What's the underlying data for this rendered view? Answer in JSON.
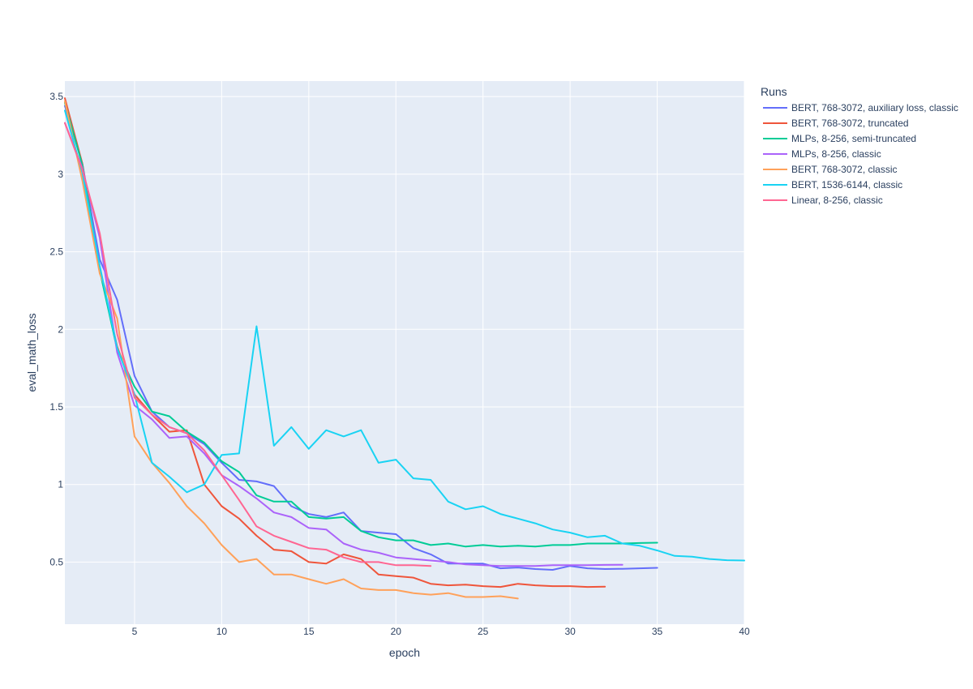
{
  "chart_data": {
    "type": "line",
    "xlabel": "epoch",
    "ylabel": "eval_math_loss",
    "xlim": [
      1,
      40
    ],
    "ylim": [
      0.1,
      3.6
    ],
    "x_ticks": [
      5,
      10,
      15,
      20,
      25,
      30,
      35,
      40
    ],
    "x_tick_labels": [
      "5",
      "10",
      "15",
      "20",
      "25",
      "30",
      "35",
      "40"
    ],
    "y_ticks": [
      0.5,
      1,
      1.5,
      2,
      2.5,
      3,
      3.5
    ],
    "y_tick_labels": [
      "0.5",
      "1",
      "1.5",
      "2",
      "2.5",
      "3",
      "3.5"
    ],
    "grid": true,
    "legend_title": "Runs",
    "legend_position": "right",
    "plot_bgcolor": "#e5ecf6",
    "series": [
      {
        "name": "BERT, 768-3072, auxiliary loss, classic",
        "color": "#636efa",
        "x": [
          1,
          2,
          3,
          4,
          5,
          6,
          7,
          8,
          9,
          10,
          11,
          12,
          13,
          14,
          15,
          16,
          17,
          18,
          19,
          20,
          21,
          22,
          23,
          24,
          25,
          26,
          27,
          28,
          29,
          30,
          31,
          32,
          33,
          34,
          35
        ],
        "y": [
          3.44,
          3.07,
          2.45,
          2.19,
          1.7,
          1.47,
          1.37,
          1.33,
          1.26,
          1.14,
          1.03,
          1.02,
          0.99,
          0.86,
          0.81,
          0.79,
          0.82,
          0.7,
          0.69,
          0.68,
          0.59,
          0.55,
          0.49,
          0.49,
          0.49,
          0.46,
          0.465,
          0.455,
          0.45,
          0.475,
          0.46,
          0.455,
          0.457,
          0.46,
          0.463
        ]
      },
      {
        "name": "BERT, 768-3072, truncated",
        "color": "#ef553b",
        "x": [
          1,
          2,
          3,
          4,
          5,
          6,
          7,
          8,
          9,
          10,
          11,
          12,
          13,
          14,
          15,
          16,
          17,
          18,
          19,
          20,
          21,
          22,
          23,
          24,
          25,
          26,
          27,
          28,
          29,
          30,
          31,
          32
        ],
        "y": [
          3.49,
          3.07,
          2.38,
          1.89,
          1.58,
          1.45,
          1.34,
          1.35,
          1.0,
          0.86,
          0.78,
          0.67,
          0.58,
          0.57,
          0.5,
          0.49,
          0.55,
          0.52,
          0.42,
          0.41,
          0.4,
          0.36,
          0.35,
          0.355,
          0.345,
          0.34,
          0.36,
          0.35,
          0.345,
          0.345,
          0.34,
          0.342
        ]
      },
      {
        "name": "MLPs, 8-256, semi-truncated",
        "color": "#00cc96",
        "x": [
          1,
          2,
          3,
          4,
          5,
          6,
          7,
          8,
          9,
          10,
          11,
          12,
          13,
          14,
          15,
          16,
          17,
          18,
          19,
          20,
          21,
          22,
          23,
          24,
          25,
          26,
          27,
          28,
          29,
          30,
          31,
          32,
          33,
          34,
          35
        ],
        "y": [
          3.46,
          3.06,
          2.38,
          1.87,
          1.63,
          1.47,
          1.44,
          1.34,
          1.27,
          1.15,
          1.08,
          0.93,
          0.89,
          0.89,
          0.79,
          0.78,
          0.79,
          0.7,
          0.66,
          0.64,
          0.64,
          0.61,
          0.62,
          0.6,
          0.61,
          0.6,
          0.605,
          0.6,
          0.61,
          0.61,
          0.62,
          0.62,
          0.62,
          0.623,
          0.625
        ]
      },
      {
        "name": "MLPs, 8-256, classic",
        "color": "#ab63fa",
        "x": [
          1,
          2,
          3,
          4,
          5,
          6,
          7,
          8,
          9,
          10,
          11,
          12,
          13,
          14,
          15,
          16,
          17,
          18,
          19,
          20,
          21,
          22,
          23,
          24,
          25,
          26,
          27,
          28,
          29,
          30,
          31,
          32,
          33
        ],
        "y": [
          3.33,
          3.04,
          2.59,
          1.85,
          1.51,
          1.42,
          1.3,
          1.31,
          1.2,
          1.06,
          0.99,
          0.91,
          0.82,
          0.79,
          0.72,
          0.71,
          0.62,
          0.58,
          0.56,
          0.53,
          0.52,
          0.51,
          0.5,
          0.485,
          0.48,
          0.475,
          0.475,
          0.475,
          0.48,
          0.48,
          0.48,
          0.482,
          0.483
        ]
      },
      {
        "name": "BERT, 768-3072, classic",
        "color": "#ffa15a",
        "x": [
          1,
          2,
          3,
          4,
          5,
          6,
          7,
          8,
          9,
          10,
          11,
          12,
          13,
          14,
          15,
          16,
          17,
          18,
          19,
          20,
          21,
          22,
          23,
          24,
          25,
          26,
          27
        ],
        "y": [
          3.47,
          2.96,
          2.36,
          2.07,
          1.31,
          1.14,
          1.01,
          0.86,
          0.75,
          0.61,
          0.5,
          0.52,
          0.42,
          0.42,
          0.39,
          0.36,
          0.39,
          0.33,
          0.32,
          0.32,
          0.3,
          0.29,
          0.3,
          0.275,
          0.275,
          0.28,
          0.265
        ]
      },
      {
        "name": "BERT, 1536-6144, classic",
        "color": "#19d3f3",
        "x": [
          1,
          2,
          3,
          4,
          5,
          6,
          7,
          8,
          9,
          10,
          11,
          12,
          13,
          14,
          15,
          16,
          17,
          18,
          19,
          20,
          21,
          22,
          23,
          24,
          25,
          26,
          27,
          28,
          29,
          30,
          31,
          32,
          33,
          34,
          35,
          36,
          37,
          38,
          39,
          40
        ],
        "y": [
          3.41,
          3.01,
          2.41,
          1.88,
          1.58,
          1.14,
          1.05,
          0.95,
          1.0,
          1.19,
          1.2,
          2.02,
          1.25,
          1.37,
          1.23,
          1.35,
          1.31,
          1.35,
          1.14,
          1.16,
          1.04,
          1.03,
          0.89,
          0.84,
          0.86,
          0.81,
          0.78,
          0.75,
          0.71,
          0.69,
          0.66,
          0.67,
          0.62,
          0.605,
          0.575,
          0.54,
          0.535,
          0.52,
          0.512,
          0.51
        ]
      },
      {
        "name": "Linear, 8-256, classic",
        "color": "#ff6692",
        "x": [
          1,
          2,
          3,
          4,
          5,
          6,
          7,
          8,
          9,
          10,
          11,
          12,
          13,
          14,
          15,
          16,
          17,
          18,
          19,
          20,
          21,
          22
        ],
        "y": [
          3.33,
          3.03,
          2.62,
          1.97,
          1.56,
          1.45,
          1.37,
          1.33,
          1.22,
          1.06,
          0.9,
          0.73,
          0.67,
          0.63,
          0.59,
          0.58,
          0.53,
          0.5,
          0.5,
          0.48,
          0.48,
          0.475
        ]
      }
    ]
  }
}
